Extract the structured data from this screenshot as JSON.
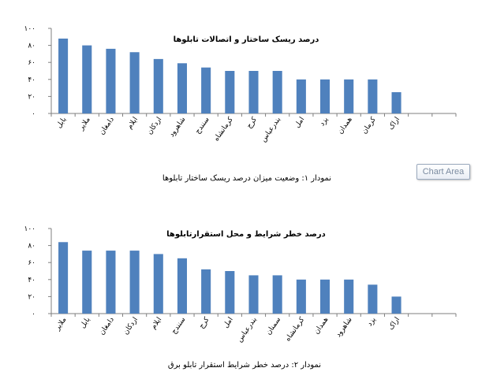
{
  "tooltip": "Chart Area",
  "chart_data": [
    {
      "type": "bar",
      "title": "درصد ریسک ساختار و اتصالات تابلوها",
      "caption": "نمودار ۱: وضعیت میزان درصد ریسک ساختار تابلوها",
      "ylim": [
        0,
        100
      ],
      "yticks": [
        "۰",
        "۲۰",
        "۴۰",
        "۶۰",
        "۸۰",
        "۱۰۰"
      ],
      "categories": [
        "بابل",
        "ملایر",
        "دامغان",
        "ایلام",
        "اردکان",
        "شاهرود",
        "سنندج",
        "کرمانشاه",
        "کرج",
        "بندرعباس",
        "امل",
        "یزد",
        "همدان",
        "کرمان",
        "اراک",
        "",
        ""
      ],
      "values": [
        88,
        80,
        76,
        72,
        64,
        59,
        54,
        50,
        50,
        50,
        40,
        40,
        40,
        40,
        25,
        null,
        null
      ],
      "color": "#4f81bd",
      "grid": false
    },
    {
      "type": "bar",
      "title": "درصد خطر شرایط و محل استقرارتابلوها",
      "caption": "نمودار ۲: درصد خطر شرایط استقرار تابلو برق",
      "ylim": [
        0,
        100
      ],
      "yticks": [
        "۰",
        "۲۰",
        "۴۰",
        "۶۰",
        "۸۰",
        "۱۰۰"
      ],
      "categories": [
        "ملایر",
        "بابل",
        "دامغان",
        "اردکان",
        "ایلام",
        "سنندج",
        "کرج",
        "امل",
        "بندرعباس",
        "سمنان",
        "کرمانشاه",
        "همدان",
        "شاهرود",
        "یزد",
        "اراک",
        "",
        ""
      ],
      "values": [
        84,
        74,
        74,
        74,
        70,
        65,
        52,
        50,
        45,
        45,
        40,
        40,
        40,
        34,
        20,
        null,
        null
      ],
      "color": "#4f81bd",
      "grid": false
    }
  ]
}
